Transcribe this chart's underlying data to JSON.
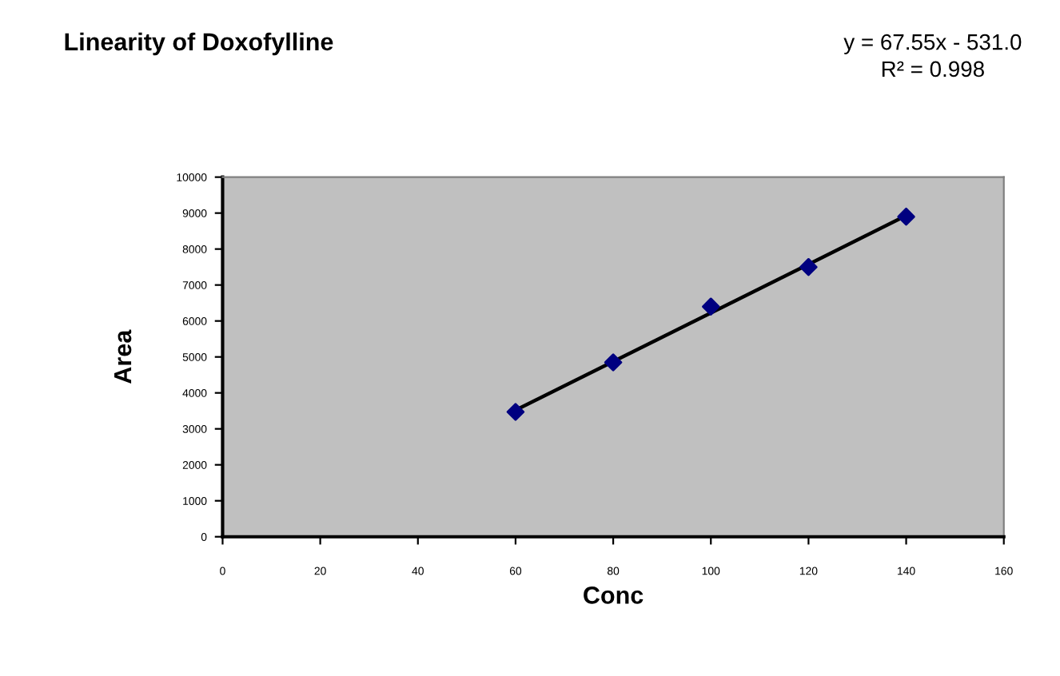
{
  "chart_data": {
    "type": "scatter",
    "title": "Linearity of Doxofylline",
    "xlabel": "Conc",
    "ylabel": "Area",
    "annotations": [
      "y = 67.55x - 531.0",
      "R² = 0.998"
    ],
    "series": [
      {
        "type": "line",
        "color": "#000000",
        "x": [
          60,
          140
        ],
        "values": [
          3520,
          8930
        ],
        "marker": "none"
      },
      {
        "color": "#000080",
        "x": [
          60,
          80,
          100,
          120,
          140
        ],
        "values": [
          3470,
          4850,
          6400,
          7500,
          8900
        ],
        "marker": "diamond"
      }
    ],
    "xlim": [
      0,
      160
    ],
    "xticks": [
      0,
      20,
      40,
      60,
      80,
      100,
      120,
      140,
      160
    ],
    "ylim": [
      0,
      10000
    ],
    "yticks": [
      0,
      1000,
      2000,
      3000,
      4000,
      5000,
      6000,
      7000,
      8000,
      9000,
      10000
    ],
    "grid": false,
    "legend": false
  }
}
